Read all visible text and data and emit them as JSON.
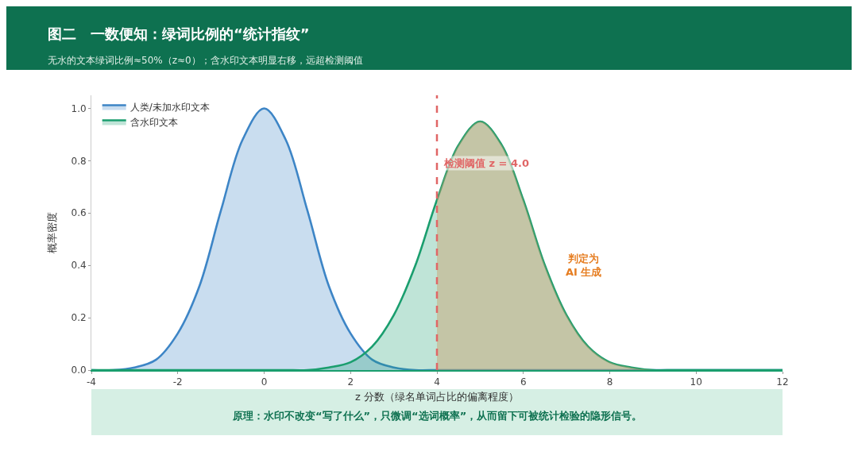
{
  "chart_data": {
    "type": "area",
    "title": "图二　一数便知：绿词比例的“统计指纹”",
    "subtitle": "无水的文本绿词比例≈50%（z≈0）；含水印文本明显右移，远超检测阈值",
    "xlabel": "z 分数（绿名单词占比的偏离程度）",
    "ylabel": "概率密度",
    "x": [
      -4,
      -3.5,
      -3,
      -2.5,
      -2,
      -1.5,
      -1,
      -0.5,
      0,
      0.5,
      1,
      1.5,
      2,
      2.5,
      3,
      3.5,
      4,
      4.5,
      5,
      5.5,
      6,
      6.5,
      7,
      7.5,
      8,
      8.5,
      9,
      9.5,
      10,
      10.5,
      11,
      11.5,
      12
    ],
    "series": [
      {
        "name": "人类/未加水印文本",
        "color": "#3d85c6",
        "values": [
          0,
          0,
          0.01,
          0.04,
          0.14,
          0.32,
          0.61,
          0.88,
          1.0,
          0.88,
          0.61,
          0.32,
          0.14,
          0.04,
          0.01,
          0,
          0,
          0,
          0,
          0,
          0,
          0,
          0,
          0,
          0,
          0,
          0,
          0,
          0,
          0,
          0,
          0,
          0
        ]
      },
      {
        "name": "含水印文本",
        "color": "#1a9e6e",
        "values": [
          0,
          0,
          0,
          0,
          0,
          0,
          0,
          0,
          0,
          0,
          0,
          0.01,
          0.03,
          0.09,
          0.21,
          0.4,
          0.65,
          0.86,
          0.95,
          0.86,
          0.65,
          0.4,
          0.21,
          0.09,
          0.03,
          0.01,
          0,
          0,
          0,
          0,
          0,
          0,
          0
        ]
      },
      {
        "color": "#c9a06a",
        "x": [
          4,
          4.5,
          5,
          5.5,
          6,
          6.5,
          7,
          7.5,
          8,
          8.5,
          9
        ],
        "values": [
          0.65,
          0.86,
          0.95,
          0.86,
          0.65,
          0.4,
          0.21,
          0.09,
          0.03,
          0.01,
          0
        ],
        "line_style": "none"
      }
    ],
    "xlim": [
      -4,
      12
    ],
    "xticks": [
      -4,
      -2,
      0,
      2,
      4,
      6,
      8,
      10,
      12
    ],
    "ylim": [
      0,
      1.05
    ],
    "yticks": [
      {
        "value": 0,
        "label": "0.0"
      },
      {
        "value": 0.2,
        "label": "0.2"
      },
      {
        "value": 0.4,
        "label": "0.4"
      },
      {
        "value": 0.6,
        "label": "0.6"
      },
      {
        "value": 0.8,
        "label": "0.8"
      },
      {
        "value": 1.0,
        "label": "1.0"
      }
    ],
    "ref_lines": [
      {
        "axis": "x",
        "value": 4,
        "label": "检测阈值 z = 4.0",
        "color": "#e06666",
        "line_style": "dashed"
      }
    ],
    "annotations": [
      "判定为\nAI 生成",
      "原理：水印不改变“写了什么”，只微调“选词概率”，从而留下可被统计检验的隐形信号。"
    ],
    "legend": "top left"
  }
}
